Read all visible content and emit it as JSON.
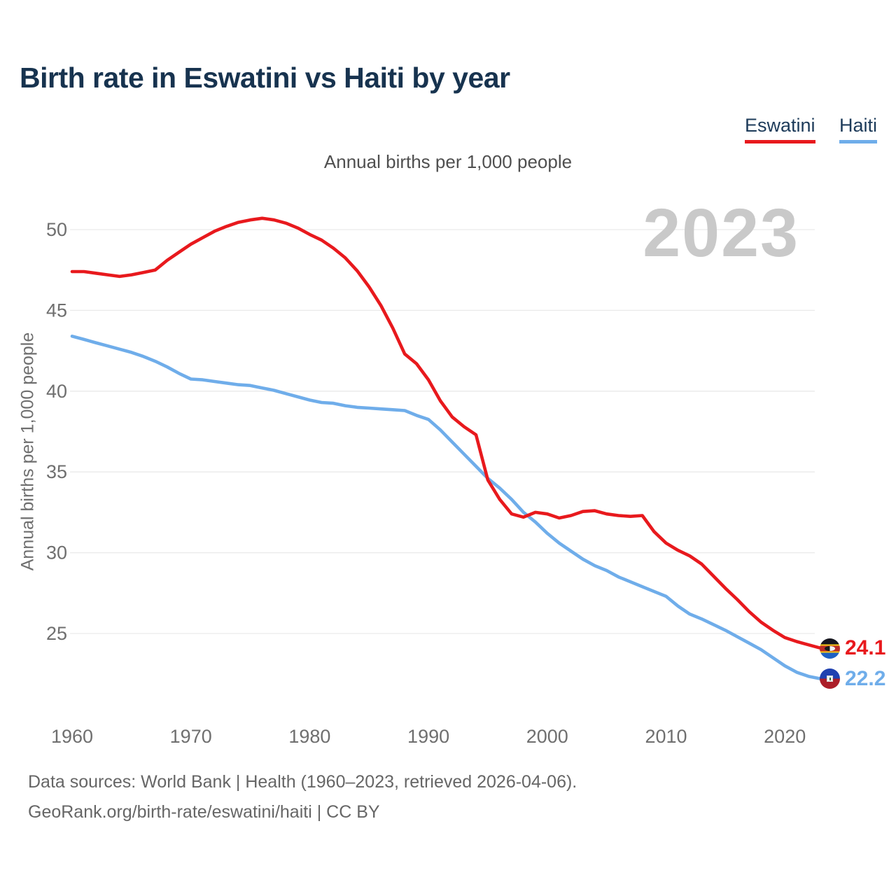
{
  "header": {
    "title": "Birth rate in Eswatini vs Haiti by year"
  },
  "chart_data": {
    "type": "line",
    "title": "Birth rate in Eswatini vs Haiti by year",
    "subtitle": "Annual births per 1,000 people",
    "ylabel": "Annual births per 1,000 people",
    "xlabel": "",
    "watermark": "2023",
    "grid": true,
    "legend_position": "top-right",
    "xlim": [
      1960,
      2023
    ],
    "ylim": [
      22,
      51
    ],
    "x_ticks": [
      1960,
      1970,
      1980,
      1990,
      2000,
      2010,
      2020
    ],
    "y_ticks": [
      25,
      30,
      35,
      40,
      45,
      50
    ],
    "x_start_year": 1960,
    "series": [
      {
        "name": "Eswatini",
        "color": "#e8191d",
        "flag_icon": "eswatini-flag",
        "end_label": "24.1",
        "values": [
          47.4,
          47.4,
          47.3,
          47.2,
          47.1,
          47.2,
          47.35,
          47.5,
          48.1,
          48.6,
          49.1,
          49.5,
          49.9,
          50.2,
          50.45,
          50.6,
          50.7,
          50.6,
          50.4,
          50.1,
          49.7,
          49.35,
          48.85,
          48.25,
          47.45,
          46.45,
          45.3,
          43.9,
          42.3,
          41.7,
          40.7,
          39.4,
          38.4,
          37.8,
          37.3,
          34.5,
          33.3,
          32.4,
          32.2,
          32.5,
          32.4,
          32.15,
          32.3,
          32.55,
          32.6,
          32.4,
          32.3,
          32.25,
          32.3,
          31.3,
          30.6,
          30.15,
          29.8,
          29.3,
          28.55,
          27.8,
          27.1,
          26.35,
          25.7,
          25.2,
          24.75,
          24.5,
          24.3,
          24.1
        ]
      },
      {
        "name": "Haiti",
        "color": "#6fadea",
        "flag_icon": "haiti-flag",
        "end_label": "22.2",
        "values": [
          43.4,
          43.2,
          43.0,
          42.8,
          42.6,
          42.4,
          42.15,
          41.85,
          41.5,
          41.1,
          40.75,
          40.7,
          40.6,
          40.5,
          40.4,
          40.35,
          40.2,
          40.05,
          39.85,
          39.65,
          39.45,
          39.3,
          39.25,
          39.1,
          39.0,
          38.95,
          38.9,
          38.85,
          38.8,
          38.5,
          38.25,
          37.6,
          36.85,
          36.1,
          35.35,
          34.6,
          34.0,
          33.3,
          32.5,
          31.9,
          31.2,
          30.6,
          30.1,
          29.6,
          29.2,
          28.9,
          28.5,
          28.2,
          27.9,
          27.6,
          27.3,
          26.7,
          26.2,
          25.9,
          25.55,
          25.2,
          24.8,
          24.4,
          24.0,
          23.5,
          23.0,
          22.6,
          22.35,
          22.2
        ]
      }
    ]
  },
  "footer": {
    "source_line": "Data sources: World Bank | Health (1960–2023, retrieved 2026-04-06).",
    "attribution_line": "GeoRank.org/birth-rate/eswatini/haiti | CC BY"
  }
}
